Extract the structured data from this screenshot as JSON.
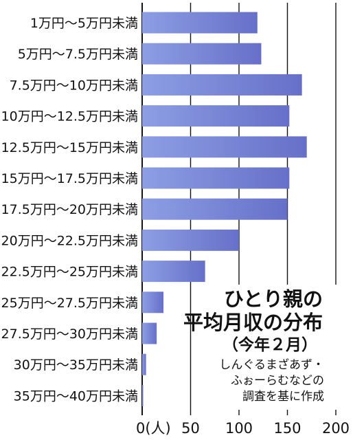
{
  "chart_data": {
    "type": "bar",
    "orientation": "horizontal",
    "title_lines": [
      "ひとり親の",
      "平均月収の分布"
    ],
    "subtitle": "（今年２月）",
    "source_lines": [
      "しんぐるまざあず・",
      "ふぉーらむなどの",
      "調査を基に作成"
    ],
    "categories": [
      "1万円～5万円未満",
      "5万円～7.5万円未満",
      "7.5万円～10万円未満",
      "10万円～12.5万円未満",
      "12.5万円～15万円未満",
      "15万円～17.5万円未満",
      "17.5万円～20万円未満",
      "20万円～22.5万円未満",
      "22.5万円～25万円未満",
      "25万円～27.5万円未満",
      "27.5万円～30万円未満",
      "30万円～35万円未満",
      "35万円～40万円未満"
    ],
    "values": [
      119,
      123,
      165,
      152,
      170,
      152,
      150,
      100,
      65,
      22,
      15,
      4,
      1
    ],
    "xlim": [
      0,
      200
    ],
    "x_ticks": [
      0,
      50,
      100,
      150,
      200
    ],
    "x_tick_labels": [
      "0(人)",
      "50",
      "100",
      "150",
      "200"
    ],
    "grid": true,
    "colors": {
      "bar_start": "#8d9ee4",
      "bar_end": "#6670c8",
      "grid": "#111111"
    }
  }
}
